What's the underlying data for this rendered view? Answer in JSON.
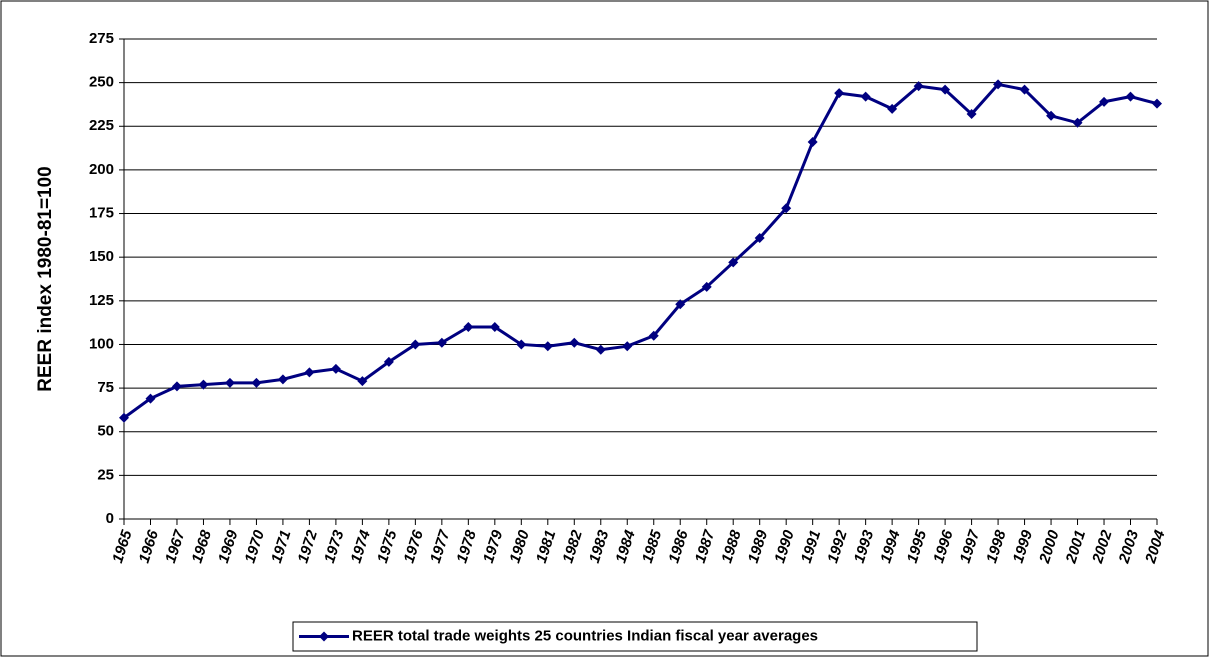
{
  "chart_data": {
    "type": "line",
    "y_label": "REER index 1980-81=100",
    "categories": [
      "1965",
      "1966",
      "1967",
      "1968",
      "1969",
      "1970",
      "1971",
      "1972",
      "1973",
      "1974",
      "1975",
      "1976",
      "1977",
      "1978",
      "1979",
      "1980",
      "1981",
      "1982",
      "1983",
      "1984",
      "1985",
      "1986",
      "1987",
      "1988",
      "1989",
      "1990",
      "1991",
      "1992",
      "1993",
      "1994",
      "1995",
      "1996",
      "1997",
      "1998",
      "1999",
      "2000",
      "2001",
      "2002",
      "2003",
      "2004"
    ],
    "series": [
      {
        "name": "REER total trade weights 25 countries Indian fiscal year averages",
        "color": "#000080",
        "values": [
          58,
          69,
          76,
          77,
          78,
          78,
          80,
          84,
          86,
          79,
          90,
          100,
          101,
          110,
          110,
          100,
          99,
          101,
          97,
          99,
          105,
          123,
          133,
          147,
          161,
          178,
          216,
          244,
          242,
          235,
          248,
          246,
          232,
          249,
          246,
          231,
          227,
          239,
          242,
          238
        ]
      }
    ],
    "ylim": [
      0,
      275
    ],
    "yticks": [
      0,
      25,
      50,
      75,
      100,
      125,
      150,
      175,
      200,
      225,
      250,
      275
    ],
    "grid": true,
    "legend": "bottom"
  }
}
